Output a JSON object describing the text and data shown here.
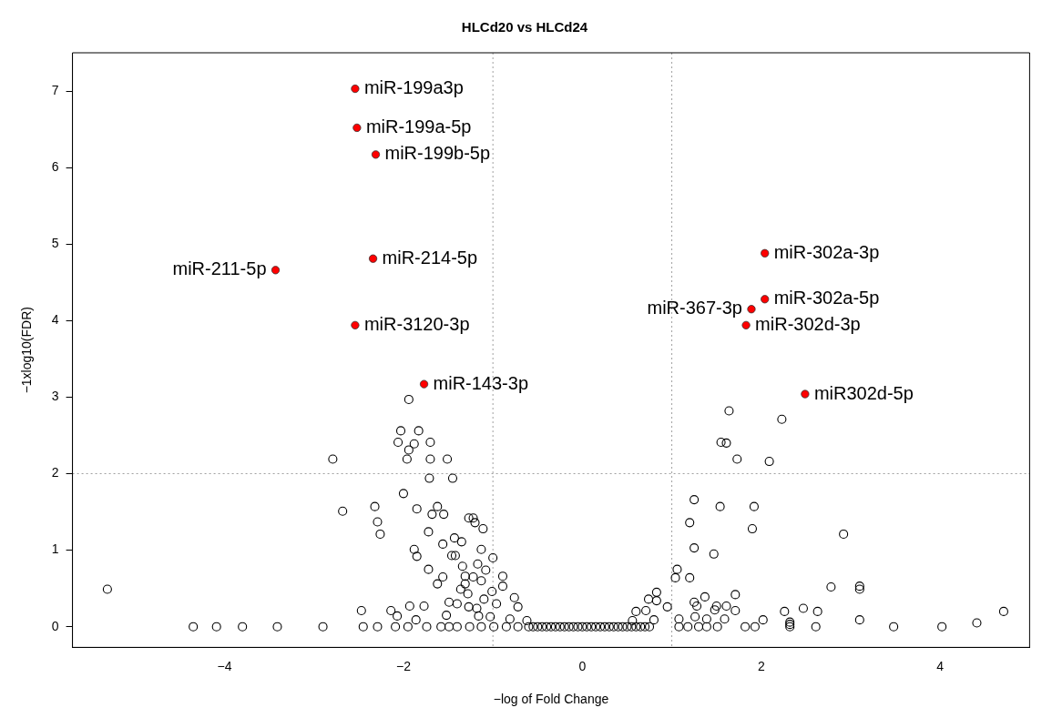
{
  "chart_data": {
    "type": "scatter",
    "title": "HLCd20 vs HLCd24",
    "xlabel": "−log of Fold Change",
    "ylabel": "−1xlog10(FDR)",
    "xlim": [
      -5.7,
      5.0
    ],
    "ylim": [
      -0.27,
      7.5
    ],
    "xticks": [
      -4,
      -2,
      0,
      2,
      4
    ],
    "yticks": [
      0,
      1,
      2,
      3,
      4,
      5,
      6,
      7
    ],
    "grid": false,
    "legend": false,
    "marker": "circle",
    "ref_lines": [
      {
        "axis": "x",
        "value": -1,
        "color": "#a0a0a0",
        "line_style": "dotted"
      },
      {
        "axis": "x",
        "value": 1,
        "color": "#a0a0a0",
        "line_style": "dotted"
      },
      {
        "axis": "y",
        "value": 2,
        "color": "#a0a0a0",
        "line_style": "dotted"
      }
    ],
    "series": [
      {
        "color": "#000000",
        "x": [
          -5.31,
          -4.35,
          -4.09,
          -3.8,
          -3.41,
          -2.9,
          -2.79,
          -2.68,
          -1.94,
          -2.03,
          -1.83,
          -2.06,
          -1.88,
          -1.7,
          -1.94,
          -1.96,
          -1.7,
          -1.51,
          -1.71,
          -1.45,
          -2.0,
          -2.32,
          -2.29,
          -2.26,
          -1.85,
          -1.62,
          -1.68,
          -1.55,
          -1.72,
          -1.27,
          -1.22,
          -1.2,
          -1.11,
          -1.43,
          -1.35,
          -1.56,
          -1.88,
          -1.85,
          -1.46,
          -1.42,
          -1.13,
          -1.0,
          -1.72,
          -1.34,
          -1.17,
          -1.08,
          -1.56,
          -1.62,
          -1.31,
          -1.22,
          -1.31,
          -1.13,
          -0.89,
          -0.89,
          -1.01,
          -1.36,
          -1.28,
          -1.1,
          -1.49,
          -1.4,
          -0.96,
          -0.76,
          -1.93,
          -1.77,
          -1.27,
          -1.18,
          -0.72,
          -2.47,
          -2.14,
          -2.07,
          -1.52,
          -1.86,
          -1.16,
          -1.03,
          -0.81,
          -0.62,
          -2.45,
          -2.29,
          -2.09,
          -1.95,
          -1.74,
          -1.58,
          -1.49,
          -1.4,
          -1.26,
          -1.13,
          -0.99,
          -0.85,
          -0.72,
          -0.6,
          -0.55,
          -0.5,
          -0.45,
          -0.4,
          -0.35,
          -0.3,
          -0.25,
          -0.2,
          -0.15,
          -0.1,
          -0.05,
          0.0,
          0.05,
          0.1,
          0.15,
          0.2,
          0.25,
          0.3,
          0.35,
          0.4,
          0.45,
          0.5,
          0.55,
          0.6,
          0.65,
          0.7,
          0.75,
          1.64,
          2.23,
          1.55,
          1.61,
          1.73,
          2.09,
          1.25,
          1.54,
          1.92,
          1.2,
          1.9,
          1.25,
          1.47,
          1.06,
          1.04,
          1.2,
          0.83,
          0.74,
          0.83,
          1.25,
          1.37,
          1.71,
          0.95,
          1.28,
          1.5,
          1.61,
          1.71,
          1.48,
          0.6,
          0.71,
          2.26,
          1.08,
          1.26,
          1.39,
          1.59,
          2.02,
          0.56,
          0.8,
          1.08,
          1.18,
          1.3,
          1.39,
          1.51,
          1.82,
          1.93,
          2.32,
          2.32,
          2.32,
          2.92,
          2.78,
          3.1,
          3.1,
          2.47,
          2.63,
          3.1,
          4.41,
          4.71,
          2.61,
          3.48,
          4.02
        ],
        "values": [
          0.49,
          0,
          0,
          0,
          0,
          0,
          2.19,
          1.51,
          2.97,
          2.56,
          2.56,
          2.41,
          2.39,
          2.41,
          2.31,
          2.19,
          2.19,
          2.19,
          1.94,
          1.94,
          1.74,
          1.57,
          1.37,
          1.21,
          1.54,
          1.57,
          1.47,
          1.47,
          1.24,
          1.42,
          1.42,
          1.36,
          1.28,
          1.16,
          1.11,
          1.08,
          1.01,
          0.92,
          0.93,
          0.93,
          1.01,
          0.9,
          0.75,
          0.79,
          0.82,
          0.74,
          0.65,
          0.56,
          0.66,
          0.65,
          0.56,
          0.6,
          0.66,
          0.53,
          0.46,
          0.49,
          0.43,
          0.36,
          0.32,
          0.3,
          0.3,
          0.38,
          0.27,
          0.27,
          0.26,
          0.24,
          0.26,
          0.21,
          0.21,
          0.14,
          0.15,
          0.09,
          0.14,
          0.13,
          0.1,
          0.08,
          0,
          0,
          0,
          0,
          0,
          0,
          0,
          0,
          0,
          0,
          0,
          0,
          0,
          0,
          0,
          0,
          0,
          0,
          0,
          0,
          0,
          0,
          0,
          0,
          0,
          0,
          0,
          0,
          0,
          0,
          0,
          0,
          0,
          0,
          0,
          0,
          0,
          0,
          0,
          0,
          0,
          2.82,
          2.71,
          2.41,
          2.4,
          2.19,
          2.16,
          1.66,
          1.57,
          1.57,
          1.36,
          1.28,
          1.03,
          0.95,
          0.75,
          0.64,
          0.64,
          0.45,
          0.36,
          0.34,
          0.32,
          0.39,
          0.42,
          0.26,
          0.27,
          0.27,
          0.27,
          0.21,
          0.22,
          0.2,
          0.21,
          0.2,
          0.1,
          0.13,
          0.1,
          0.1,
          0.09,
          0.08,
          0.09,
          0,
          0,
          0,
          0,
          0,
          0,
          0,
          0,
          0.03,
          0.06,
          1.21,
          0.52,
          0.53,
          0.49,
          0.24,
          0.2,
          0.09,
          0.05,
          0.2,
          0,
          0,
          0
        ]
      },
      {
        "color": "#ff0000",
        "x": [
          -2.54,
          -2.52,
          -2.31,
          -2.34,
          -3.43,
          -2.54,
          -1.77,
          2.04,
          2.04,
          1.89,
          1.83,
          2.49
        ],
        "values": [
          7.03,
          6.52,
          6.17,
          4.81,
          4.66,
          3.94,
          3.17,
          4.88,
          4.28,
          4.15,
          3.94,
          3.04
        ]
      }
    ],
    "annotations": [
      {
        "text": "miR-199a3p",
        "x": -2.54,
        "y": 7.03
      },
      {
        "text": "miR-199a-5p",
        "x": -2.52,
        "y": 6.52
      },
      {
        "text": "miR-199b-5p",
        "x": -2.31,
        "y": 6.17
      },
      {
        "text": "miR-214-5p",
        "x": -2.34,
        "y": 4.81
      },
      {
        "text": "miR-211-5p",
        "x": -3.43,
        "y": 4.66
      },
      {
        "text": "miR-3120-3p",
        "x": -2.54,
        "y": 3.94
      },
      {
        "text": "miR-143-3p",
        "x": -1.77,
        "y": 3.17
      },
      {
        "text": "miR-302a-3p",
        "x": 2.04,
        "y": 4.88
      },
      {
        "text": "miR-302a-5p",
        "x": 2.04,
        "y": 4.28
      },
      {
        "text": "miR-367-3p",
        "x": 1.89,
        "y": 4.15
      },
      {
        "text": "miR-302d-3p",
        "x": 1.83,
        "y": 3.94
      },
      {
        "text": "miR302d-5p",
        "x": 2.49,
        "y": 3.04
      }
    ]
  }
}
